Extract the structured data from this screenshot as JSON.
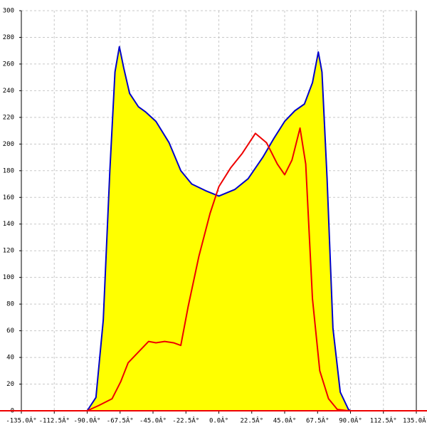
{
  "chart_data": {
    "type": "area-line",
    "xlim": [
      -135,
      135
    ],
    "ylim": [
      0,
      300
    ],
    "xticks": [
      {
        "value": -135,
        "label": "-135.0Â°"
      },
      {
        "value": -112.5,
        "label": "-112.5Â°"
      },
      {
        "value": -90,
        "label": "-90.0Â°"
      },
      {
        "value": -67.5,
        "label": "-67.5Â°"
      },
      {
        "value": -45,
        "label": "-45.0Â°"
      },
      {
        "value": -22.5,
        "label": "-22.5Â°"
      },
      {
        "value": 0,
        "label": "0.0Â°"
      },
      {
        "value": 22.5,
        "label": "22.5Â°"
      },
      {
        "value": 45,
        "label": "45.0Â°"
      },
      {
        "value": 67.5,
        "label": "67.5Â°"
      },
      {
        "value": 90,
        "label": "90.0Â°"
      },
      {
        "value": 112.5,
        "label": "112.5Â°"
      },
      {
        "value": 135,
        "label": "135.0Â°"
      }
    ],
    "yticks": [
      0,
      20,
      40,
      60,
      80,
      100,
      120,
      140,
      160,
      180,
      200,
      220,
      240,
      260,
      280,
      300
    ],
    "grid": true,
    "series": [
      {
        "color": "#0000cc",
        "fill": "#ffff00",
        "x": [
          -90,
          -84,
          -79,
          -74.5,
          -71,
          -68,
          -65,
          -61,
          -55,
          -50,
          -43,
          -34,
          -26,
          -18.5,
          -9,
          0,
          11,
          20,
          30,
          37.5,
          45,
          52,
          58.5,
          64,
          68,
          70.5,
          74,
          78,
          83,
          88.6,
          90
        ],
        "values": [
          0,
          10,
          68,
          180,
          254,
          273,
          257,
          238,
          228,
          224,
          217,
          201,
          180,
          170,
          165,
          161,
          166,
          174,
          190,
          204,
          217,
          225,
          230,
          246,
          269,
          254,
          174,
          62,
          14,
          1,
          0
        ]
      },
      {
        "color": "#ee0000",
        "x": [
          -90,
          -82,
          -73,
          -67,
          -62,
          -55,
          -48,
          -43,
          -37,
          -31,
          -26,
          -21,
          -13.6,
          -6,
          0,
          8,
          16,
          25,
          32.6,
          40,
          45,
          50,
          55.5,
          59.4,
          64,
          69,
          75,
          81,
          88.6
        ],
        "values": [
          0,
          4,
          9,
          22,
          36,
          44,
          52,
          51,
          52,
          51,
          49,
          78,
          116,
          148,
          168,
          182,
          193,
          208,
          201,
          185,
          177,
          188,
          212,
          185,
          84,
          30,
          9,
          1,
          0
        ]
      }
    ]
  }
}
